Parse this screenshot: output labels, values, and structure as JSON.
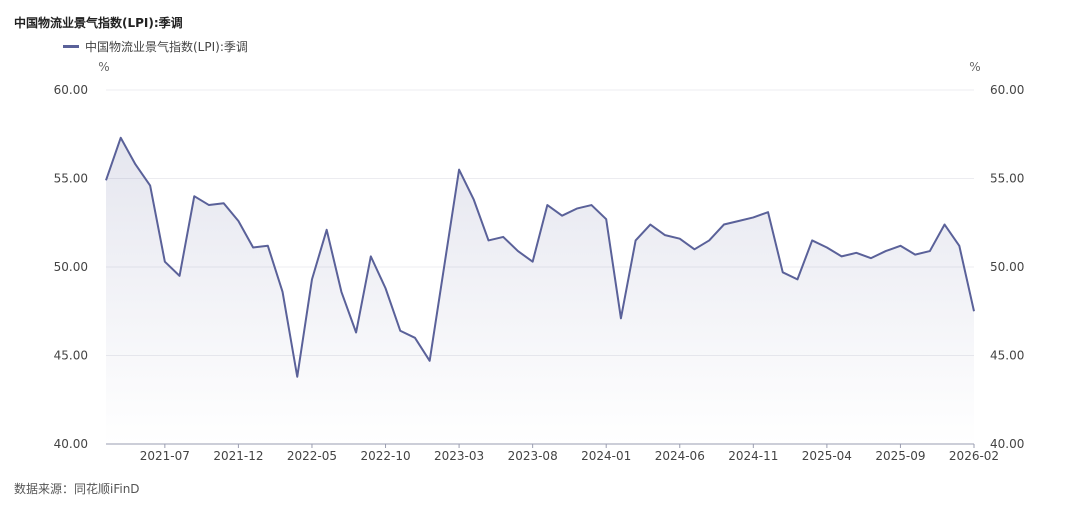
{
  "chart_data": {
    "type": "line",
    "title": "中国物流业景气指数(LPI):季调",
    "series": [
      {
        "name": "中国物流业景气指数(LPI):季调",
        "color": "#5a6199",
        "values": [
          54.9,
          57.3,
          55.8,
          54.6,
          50.3,
          49.5,
          54.0,
          53.5,
          53.6,
          52.6,
          51.1,
          51.2,
          48.6,
          43.8,
          49.3,
          52.1,
          48.6,
          46.3,
          50.6,
          48.8,
          46.4,
          46.0,
          44.7,
          50.1,
          55.5,
          53.8,
          51.5,
          51.7,
          50.9,
          50.3,
          53.5,
          52.9,
          53.3,
          53.5,
          52.7,
          47.1,
          51.5,
          52.4,
          51.8,
          51.6,
          51.0,
          51.5,
          52.4,
          52.6,
          52.8,
          53.1,
          49.7,
          49.3,
          51.5,
          51.1,
          50.6,
          50.8,
          50.5,
          50.9,
          51.2,
          50.7,
          50.9,
          52.4,
          51.2,
          47.5
        ]
      }
    ],
    "x_tick_labels": [
      "2021-07",
      "2021-12",
      "2022-05",
      "2022-10",
      "2023-03",
      "2023-08",
      "2024-01",
      "2024-06",
      "2024-11",
      "2025-04",
      "2025-09",
      "2026-02"
    ],
    "y_tick_labels": [
      "60.00",
      "55.00",
      "50.00",
      "45.00",
      "40.00"
    ],
    "ylim": [
      40,
      60
    ],
    "y_unit_left": "%",
    "y_unit_right": "%",
    "grid": true,
    "legend_position": "top-left",
    "source": "数据来源：同花顺iFinD"
  }
}
